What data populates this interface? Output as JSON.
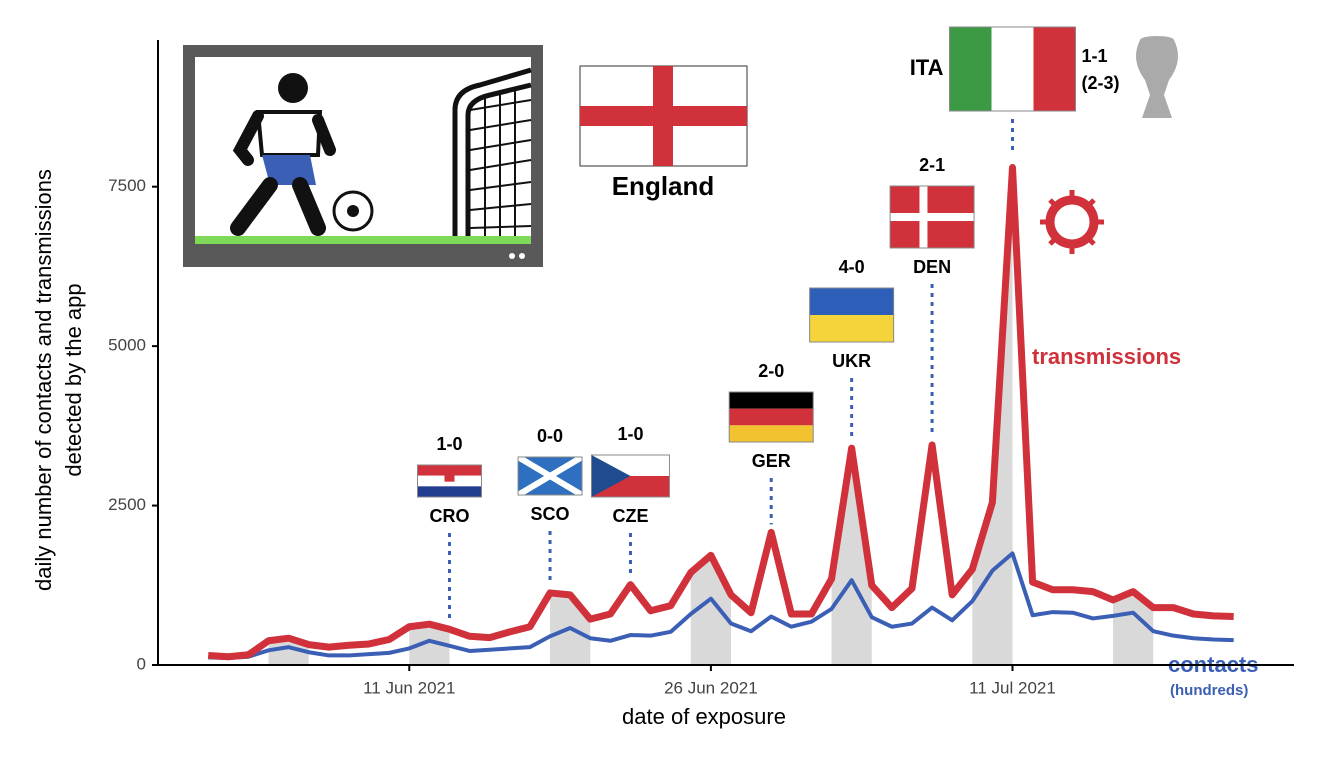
{
  "chart_data": {
    "type": "line",
    "ylabel": [
      "daily number of contacts and transmissions",
      "detected by the app"
    ],
    "xlabel": "date of exposure",
    "x": [
      "2021-06-01",
      "2021-06-02",
      "2021-06-03",
      "2021-06-04",
      "2021-06-05",
      "2021-06-06",
      "2021-06-07",
      "2021-06-08",
      "2021-06-09",
      "2021-06-10",
      "2021-06-11",
      "2021-06-12",
      "2021-06-13",
      "2021-06-14",
      "2021-06-15",
      "2021-06-16",
      "2021-06-17",
      "2021-06-18",
      "2021-06-19",
      "2021-06-20",
      "2021-06-21",
      "2021-06-22",
      "2021-06-23",
      "2021-06-24",
      "2021-06-25",
      "2021-06-26",
      "2021-06-27",
      "2021-06-28",
      "2021-06-29",
      "2021-06-30",
      "2021-07-01",
      "2021-07-02",
      "2021-07-03",
      "2021-07-04",
      "2021-07-05",
      "2021-07-06",
      "2021-07-07",
      "2021-07-08",
      "2021-07-09",
      "2021-07-10",
      "2021-07-11",
      "2021-07-12",
      "2021-07-13",
      "2021-07-14",
      "2021-07-15",
      "2021-07-16",
      "2021-07-17",
      "2021-07-18",
      "2021-07-19",
      "2021-07-20",
      "2021-07-21",
      "2021-07-22"
    ],
    "series": [
      {
        "name": "transmissions",
        "color": "#d0313a",
        "values": [
          150,
          130,
          160,
          380,
          420,
          320,
          280,
          310,
          330,
          400,
          600,
          640,
          560,
          450,
          430,
          520,
          600,
          1130,
          1100,
          720,
          800,
          1260,
          850,
          930,
          1450,
          1720,
          1100,
          820,
          2080,
          800,
          800,
          1350,
          3400,
          1250,
          900,
          1200,
          3450,
          1100,
          1500,
          2550,
          7800,
          1300,
          1180,
          1180,
          1150,
          1020,
          1150,
          900,
          900,
          800,
          770,
          760
        ]
      },
      {
        "name": "contacts",
        "unit": "(hundreds)",
        "color": "#3b5fb5",
        "values": [
          120,
          110,
          130,
          230,
          280,
          200,
          150,
          150,
          170,
          190,
          260,
          380,
          300,
          220,
          240,
          260,
          280,
          450,
          580,
          420,
          380,
          470,
          460,
          520,
          800,
          1040,
          650,
          530,
          760,
          600,
          680,
          880,
          1330,
          750,
          600,
          650,
          900,
          700,
          1000,
          1480,
          1750,
          780,
          830,
          820,
          730,
          770,
          820,
          530,
          460,
          420,
          400,
          390
        ]
      }
    ],
    "xlim": [
      "2021-05-30",
      "2021-07-25"
    ],
    "xticks": [
      {
        "value": "2021-06-11",
        "label": "11 Jun 2021"
      },
      {
        "value": "2021-06-26",
        "label": "26 Jun 2021"
      },
      {
        "value": "2021-07-11",
        "label": "11 Jul 2021"
      }
    ],
    "ylim": [
      0,
      9800
    ],
    "yticks": [
      0,
      2500,
      5000,
      7500
    ],
    "team": "England",
    "matches": [
      {
        "date": "2021-06-13",
        "opponent": "CRO",
        "score": "1-0"
      },
      {
        "date": "2021-06-18",
        "opponent": "SCO",
        "score": "0-0"
      },
      {
        "date": "2021-06-22",
        "opponent": "CZE",
        "score": "1-0"
      },
      {
        "date": "2021-06-29",
        "opponent": "GER",
        "score": "2-0"
      },
      {
        "date": "2021-07-03",
        "opponent": "UKR",
        "score": "4-0"
      },
      {
        "date": "2021-07-07",
        "opponent": "DEN",
        "score": "2-1"
      },
      {
        "date": "2021-07-11",
        "opponent": "ITA",
        "score": "1-1",
        "penalties": "(2-3)"
      }
    ]
  }
}
